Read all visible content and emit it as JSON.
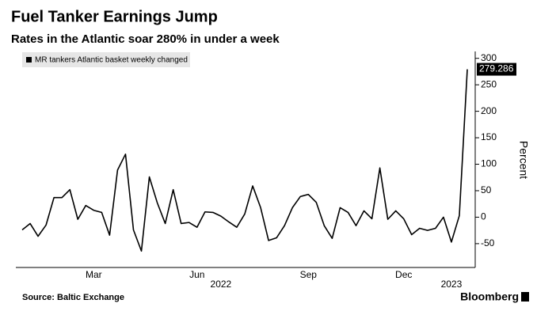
{
  "chart_data": {
    "type": "line",
    "title": "Fuel Tanker Earnings Jump",
    "subtitle": "Rates in the Atlantic soar 280% in under a week",
    "y_label": "Percent",
    "source": "Source: Baltic Exchange",
    "brand": "Bloomberg",
    "categories": [
      null,
      null,
      null,
      null,
      null,
      null,
      null,
      null,
      null,
      "Mar",
      null,
      null,
      null,
      null,
      null,
      null,
      null,
      null,
      null,
      null,
      null,
      null,
      "Jun",
      null,
      null,
      null,
      null,
      null,
      null,
      null,
      null,
      null,
      null,
      null,
      null,
      null,
      "Sep",
      null,
      null,
      null,
      null,
      null,
      null,
      null,
      null,
      null,
      null,
      null,
      "Dec",
      null,
      null,
      null,
      null,
      null,
      null,
      null,
      null
    ],
    "year_categories": [
      null,
      null,
      null,
      null,
      null,
      null,
      null,
      null,
      null,
      null,
      null,
      null,
      null,
      null,
      null,
      null,
      null,
      null,
      null,
      null,
      null,
      null,
      null,
      null,
      null,
      "2022",
      null,
      null,
      null,
      null,
      null,
      null,
      null,
      null,
      null,
      null,
      null,
      null,
      null,
      null,
      null,
      null,
      null,
      null,
      null,
      null,
      null,
      null,
      null,
      null,
      null,
      null,
      null,
      null,
      "2023",
      null,
      null
    ],
    "series": [
      {
        "name": "MR tankers Atlantic basket weekly changed",
        "color": "#000000",
        "values": [
          -24,
          -12,
          -36,
          -15,
          37,
          37,
          52,
          -4,
          22,
          13,
          9,
          -34,
          89,
          119,
          -24,
          -64,
          76,
          27,
          -12,
          52,
          -12,
          -10,
          -19,
          10,
          9,
          2,
          -9,
          -19,
          6,
          59,
          18,
          -44,
          -39,
          -16,
          18,
          39,
          43,
          28,
          -16,
          -40,
          18,
          9,
          -16,
          12,
          -3,
          93,
          -4,
          12,
          -3,
          -33,
          -21,
          -25,
          -21,
          0,
          -47,
          3,
          279.286
        ]
      }
    ],
    "ylim": [
      -95,
      313
    ],
    "yticks": [
      -50,
      0,
      50,
      100,
      150,
      200,
      250,
      300
    ],
    "label_last": true,
    "grid": false
  }
}
